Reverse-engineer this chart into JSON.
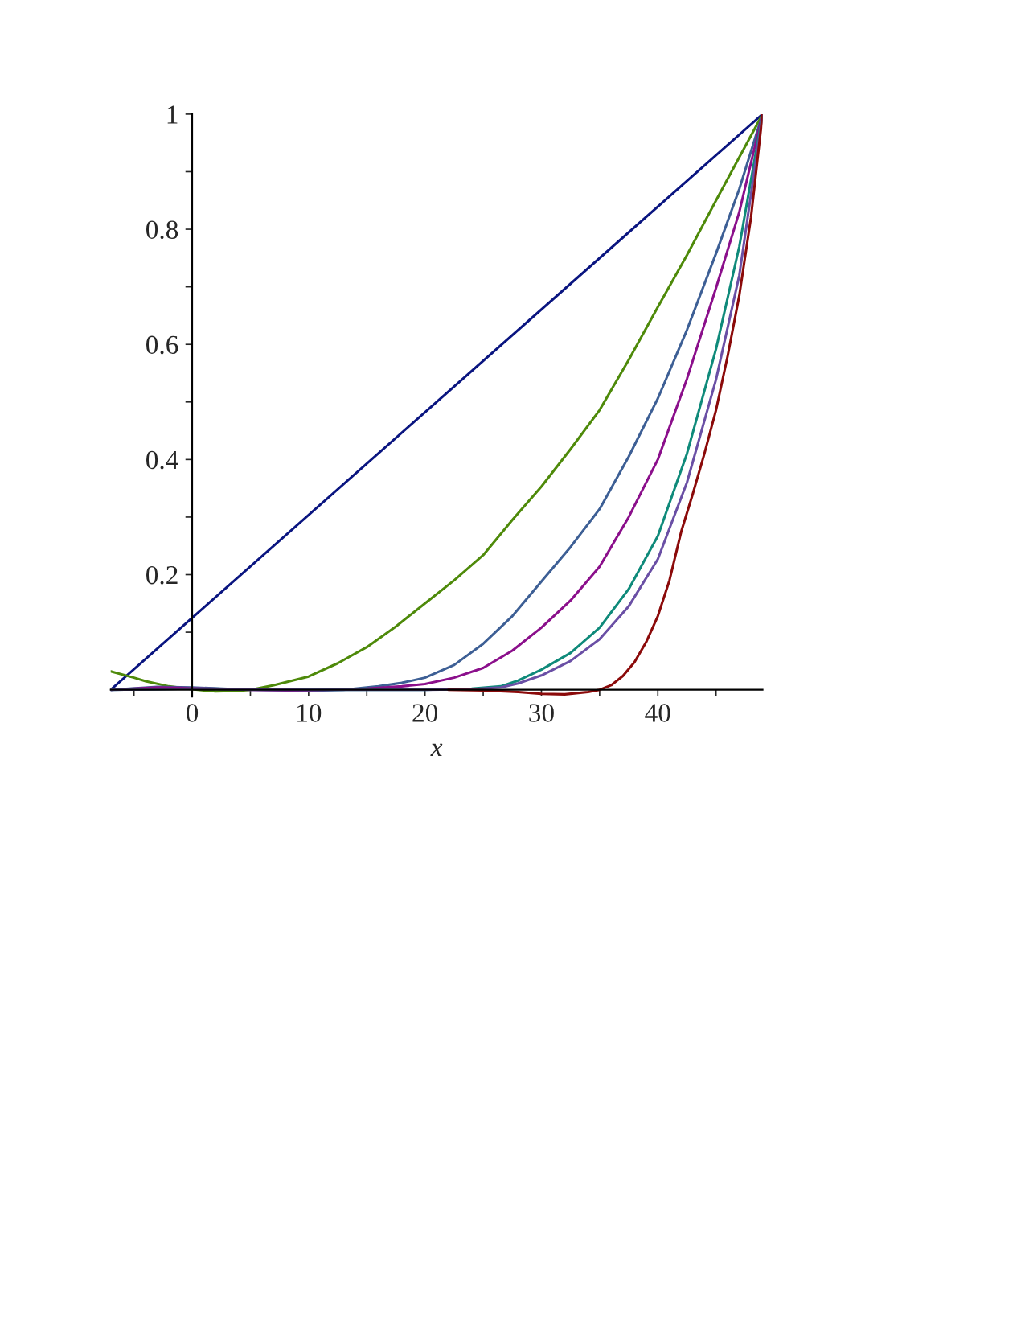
{
  "chart_data": {
    "type": "line",
    "xlabel": "x",
    "xlim": [
      -7,
      49
    ],
    "ylim": [
      -0.012,
      1
    ],
    "xticks": [
      {
        "value": -5,
        "label": null
      },
      0,
      {
        "value": 5,
        "label": null
      },
      10,
      {
        "value": 15,
        "label": null
      },
      20,
      {
        "value": 25,
        "label": null
      },
      30,
      {
        "value": 35,
        "label": null
      },
      40,
      {
        "value": 45,
        "label": null
      }
    ],
    "yticks": [
      {
        "value": 0.1,
        "label": null
      },
      0.2,
      {
        "value": 0.3,
        "label": null
      },
      0.4,
      {
        "value": 0.5,
        "label": null
      },
      0.6,
      {
        "value": 0.7,
        "label": null
      },
      0.8,
      {
        "value": 0.9,
        "label": null
      },
      1
    ],
    "grid": false,
    "legend": false,
    "marker": "none",
    "line_style": "solid",
    "series": [
      {
        "color": "#0a1580",
        "x": [
          -7,
          49
        ],
        "values": [
          0,
          1
        ]
      },
      {
        "color": "#4e8a0a",
        "x": [
          -7,
          -5,
          -4,
          -2,
          0,
          2,
          4,
          5,
          7,
          10,
          12.5,
          15,
          17.5,
          20,
          22.5,
          25,
          27.5,
          30,
          32.5,
          35,
          37.5,
          40,
          42.5,
          45,
          47,
          49
        ],
        "values": [
          0.032,
          0.021,
          0.015,
          0.006,
          0.001,
          -0.003,
          -0.002,
          0,
          0.008,
          0.023,
          0.046,
          0.074,
          0.11,
          0.15,
          0.19,
          0.234,
          0.295,
          0.353,
          0.418,
          0.486,
          0.573,
          0.665,
          0.755,
          0.85,
          0.925,
          1
        ]
      },
      {
        "color": "#3d5f95",
        "x": [
          -7,
          -3,
          0,
          5,
          10,
          13,
          16,
          18,
          20,
          22.5,
          25,
          27.5,
          30,
          32.5,
          35,
          37.5,
          40,
          42.5,
          45,
          47,
          49
        ],
        "values": [
          0,
          0.005,
          0.004,
          0,
          -0.002,
          0,
          0.006,
          0.012,
          0.021,
          0.043,
          0.08,
          0.128,
          0.188,
          0.248,
          0.314,
          0.405,
          0.506,
          0.625,
          0.758,
          0.87,
          1
        ]
      },
      {
        "color": "#8b0f8b",
        "x": [
          -7,
          -3,
          0,
          5,
          10,
          15,
          18,
          20,
          22.5,
          25,
          27.5,
          30,
          32.5,
          35,
          37.5,
          40,
          42.5,
          45,
          47,
          49
        ],
        "values": [
          0,
          0.004,
          0.003,
          0,
          -0.001,
          0.002,
          0.006,
          0.01,
          0.021,
          0.038,
          0.068,
          0.108,
          0.155,
          0.214,
          0.3,
          0.4,
          0.54,
          0.698,
          0.83,
          1
        ]
      },
      {
        "color": "#0f8a7a",
        "x": [
          -7,
          0,
          10,
          20,
          24,
          26.5,
          28,
          30,
          32.5,
          35,
          37.5,
          40,
          42.5,
          45,
          47,
          49
        ],
        "values": [
          0,
          0.002,
          0,
          0,
          0.002,
          0.006,
          0.016,
          0.035,
          0.064,
          0.108,
          0.175,
          0.267,
          0.41,
          0.592,
          0.77,
          1
        ]
      },
      {
        "color": "#6a4fa5",
        "x": [
          -7,
          0,
          10,
          20,
          24,
          26.5,
          28,
          30,
          32.5,
          35,
          37.5,
          40,
          42.5,
          45,
          47,
          49
        ],
        "values": [
          0,
          0.002,
          0,
          0,
          0.001,
          0.004,
          0.011,
          0.025,
          0.05,
          0.088,
          0.145,
          0.227,
          0.36,
          0.539,
          0.72,
          1
        ]
      },
      {
        "color": "#8b0a0a",
        "x": [
          22,
          25,
          28,
          30,
          32,
          34,
          35,
          36,
          37,
          38,
          39,
          40,
          41,
          42,
          43,
          44,
          45,
          46,
          47,
          48,
          49
        ],
        "values": [
          0,
          -0.001,
          -0.004,
          -0.007,
          -0.008,
          -0.004,
          0,
          0.008,
          0.024,
          0.048,
          0.083,
          0.128,
          0.19,
          0.274,
          0.34,
          0.41,
          0.486,
          0.58,
          0.685,
          0.82,
          1
        ]
      }
    ]
  }
}
